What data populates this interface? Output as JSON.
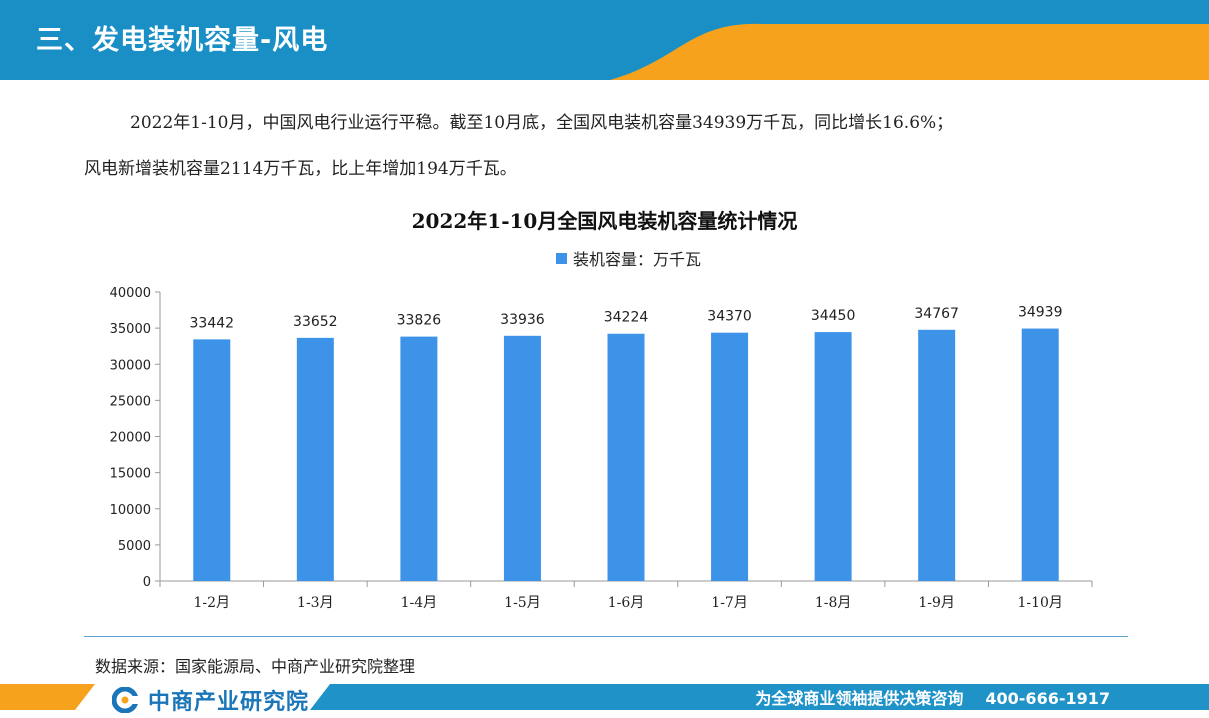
{
  "header": {
    "title": "三、发电装机容量-风电"
  },
  "intro": {
    "line1": "2022年1-10月，中国风电行业运行平稳。截至10月底，全国风电装机容量34939万千瓦，同比增长16.6%；",
    "line2": "风电新增装机容量2114万千瓦，比上年增加194万千瓦。"
  },
  "chart_data": {
    "type": "bar",
    "title": "2022年1-10月全国风电装机容量统计情况",
    "legend": "装机容量：万千瓦",
    "legend_position": "top-center",
    "categories": [
      "1-2月",
      "1-3月",
      "1-4月",
      "1-5月",
      "1-6月",
      "1-7月",
      "1-8月",
      "1-9月",
      "1-10月"
    ],
    "values": [
      33442,
      33652,
      33826,
      33936,
      34224,
      34370,
      34450,
      34767,
      34939
    ],
    "ylim": [
      0,
      40000
    ],
    "yticks": [
      0,
      5000,
      10000,
      15000,
      20000,
      25000,
      30000,
      35000,
      40000
    ],
    "grid": false,
    "bar_color": "#3d93e8"
  },
  "source": {
    "text": "数据来源：国家能源局、中商产业研究院整理"
  },
  "footer": {
    "logo_text": "中商产业研究院",
    "slogan": "为全球商业领袖提供决策咨询",
    "phone": "400-666-1917"
  },
  "colors": {
    "header_blue": "#1a8fc6",
    "header_orange": "#f6a21c",
    "footer_blue": "#1f93c8"
  }
}
